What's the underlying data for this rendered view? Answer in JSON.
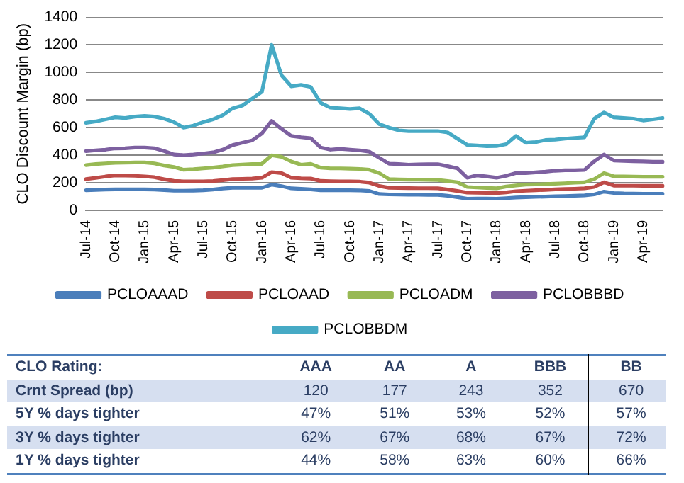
{
  "chart_data": {
    "type": "line",
    "ylabel": "CLO Discount Margin (bp)",
    "categories": [
      "Jul-14",
      null,
      null,
      "Oct-14",
      null,
      null,
      "Jan-15",
      null,
      null,
      "Apr-15",
      null,
      null,
      "Jul-15",
      null,
      null,
      "Oct-15",
      null,
      null,
      "Jan-16",
      null,
      null,
      "Apr-16",
      null,
      null,
      "Jul-16",
      null,
      null,
      "Oct-16",
      null,
      null,
      "Jan-17",
      null,
      null,
      "Apr-17",
      null,
      null,
      "Jul-17",
      null,
      null,
      "Oct-17",
      null,
      null,
      "Jan-18",
      null,
      null,
      "Apr-18",
      null,
      null,
      "Jul-18",
      null,
      null,
      "Oct-18",
      null,
      null,
      "Jan-19",
      null,
      null,
      "Apr-19",
      null,
      null
    ],
    "series": [
      {
        "name": "PCLOAAAD",
        "color": "#4a7ebb",
        "values": [
          145,
          148,
          150,
          152,
          152,
          152,
          152,
          150,
          146,
          142,
          142,
          143,
          145,
          150,
          158,
          163,
          163,
          163,
          163,
          186,
          175,
          159,
          155,
          152,
          145,
          145,
          145,
          145,
          144,
          140,
          118,
          115,
          114,
          113,
          113,
          112,
          112,
          105,
          95,
          84,
          85,
          85,
          84,
          88,
          92,
          95,
          97,
          99,
          101,
          103,
          105,
          108,
          115,
          135,
          125,
          122,
          121,
          120,
          120,
          120
        ]
      },
      {
        "name": "PCLOAAD",
        "color": "#be4b48",
        "values": [
          226,
          235,
          245,
          253,
          252,
          250,
          246,
          240,
          225,
          213,
          210,
          209,
          209,
          212,
          218,
          226,
          228,
          230,
          236,
          277,
          270,
          236,
          232,
          230,
          213,
          211,
          210,
          209,
          208,
          200,
          176,
          163,
          162,
          161,
          160,
          160,
          159,
          150,
          140,
          128,
          127,
          126,
          125,
          130,
          138,
          142,
          145,
          148,
          152,
          154,
          156,
          159,
          169,
          203,
          179,
          178,
          178,
          177,
          177,
          177
        ]
      },
      {
        "name": "PCLOADM",
        "color": "#98b954",
        "values": [
          328,
          335,
          340,
          344,
          345,
          347,
          347,
          340,
          325,
          314,
          294,
          298,
          304,
          310,
          318,
          328,
          332,
          335,
          337,
          399,
          388,
          354,
          331,
          337,
          310,
          304,
          304,
          302,
          300,
          294,
          270,
          226,
          224,
          222,
          222,
          221,
          220,
          212,
          203,
          169,
          165,
          162,
          159,
          172,
          180,
          186,
          188,
          190,
          193,
          196,
          200,
          203,
          226,
          270,
          246,
          245,
          244,
          243,
          243,
          243
        ]
      },
      {
        "name": "PCLOBBBD",
        "color": "#7d60a0",
        "values": [
          429,
          435,
          440,
          449,
          450,
          455,
          455,
          450,
          430,
          405,
          400,
          405,
          412,
          420,
          440,
          473,
          490,
          507,
          558,
          649,
          591,
          540,
          530,
          523,
          456,
          440,
          446,
          440,
          435,
          425,
          381,
          338,
          335,
          331,
          333,
          334,
          334,
          320,
          304,
          236,
          253,
          245,
          236,
          250,
          270,
          270,
          275,
          280,
          287,
          290,
          290,
          293,
          355,
          405,
          361,
          358,
          356,
          355,
          352,
          352
        ]
      },
      {
        "name": "PCLOBBDM",
        "color": "#46aac5",
        "values": [
          635,
          645,
          660,
          675,
          670,
          680,
          685,
          680,
          665,
          640,
          600,
          615,
          640,
          660,
          690,
          740,
          760,
          810,
          860,
          1200,
          980,
          900,
          910,
          895,
          780,
          745,
          740,
          735,
          740,
          700,
          625,
          600,
          580,
          575,
          575,
          575,
          575,
          565,
          520,
          475,
          470,
          465,
          466,
          480,
          540,
          490,
          495,
          510,
          513,
          520,
          525,
          530,
          665,
          710,
          675,
          670,
          665,
          652,
          660,
          670
        ]
      }
    ],
    "ylim": [
      0,
      1400
    ],
    "yticks": [
      0,
      200,
      400,
      600,
      800,
      1000,
      1200,
      1400
    ],
    "grid": "y",
    "legend": "bottom",
    "marker": "none",
    "line_style": "solid",
    "annotations": [
      "CLO Rating:",
      "AAA",
      "AA",
      "A",
      "BBB",
      "BB",
      "Crnt Spread (bp)",
      "120",
      "177",
      "243",
      "352",
      "670",
      "5Y % days tighter",
      "47%",
      "51%",
      "53%",
      "52%",
      "57%",
      "3Y % days tighter",
      "62%",
      "67%",
      "68%",
      "67%",
      "72%",
      "1Y % days tighter",
      "44%",
      "58%",
      "63%",
      "60%",
      "66%"
    ]
  }
}
